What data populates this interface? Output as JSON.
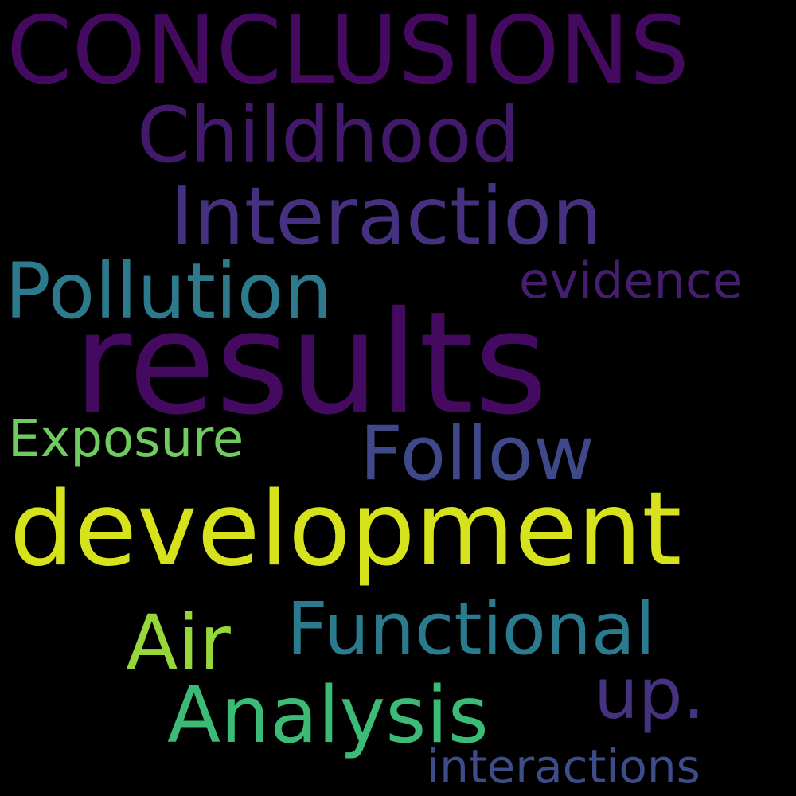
{
  "words": [
    {
      "id": "conclusions",
      "text": "CONCLUSIONS",
      "color": "#440a5f"
    },
    {
      "id": "childhood",
      "text": "Childhood",
      "color": "#43196b"
    },
    {
      "id": "interaction",
      "text": "Interaction",
      "color": "#453180"
    },
    {
      "id": "pollution",
      "text": "Pollution",
      "color": "#2c7a8c"
    },
    {
      "id": "evidence",
      "text": "evidence",
      "color": "#461e6e"
    },
    {
      "id": "results",
      "text": "results",
      "color": "#440a5f"
    },
    {
      "id": "exposure",
      "text": "Exposure",
      "color": "#6fcb5f"
    },
    {
      "id": "follow",
      "text": "Follow",
      "color": "#3f4989"
    },
    {
      "id": "development",
      "text": "development",
      "color": "#d5e21c"
    },
    {
      "id": "functional",
      "text": "Functional",
      "color": "#2b7b8e"
    },
    {
      "id": "air",
      "text": "Air",
      "color": "#96d83c"
    },
    {
      "id": "up",
      "text": "up.",
      "color": "#46337f"
    },
    {
      "id": "analysis",
      "text": "Analysis",
      "color": "#3bbb75"
    },
    {
      "id": "interactions",
      "text": "interactions",
      "color": "#3e4c8a"
    }
  ]
}
